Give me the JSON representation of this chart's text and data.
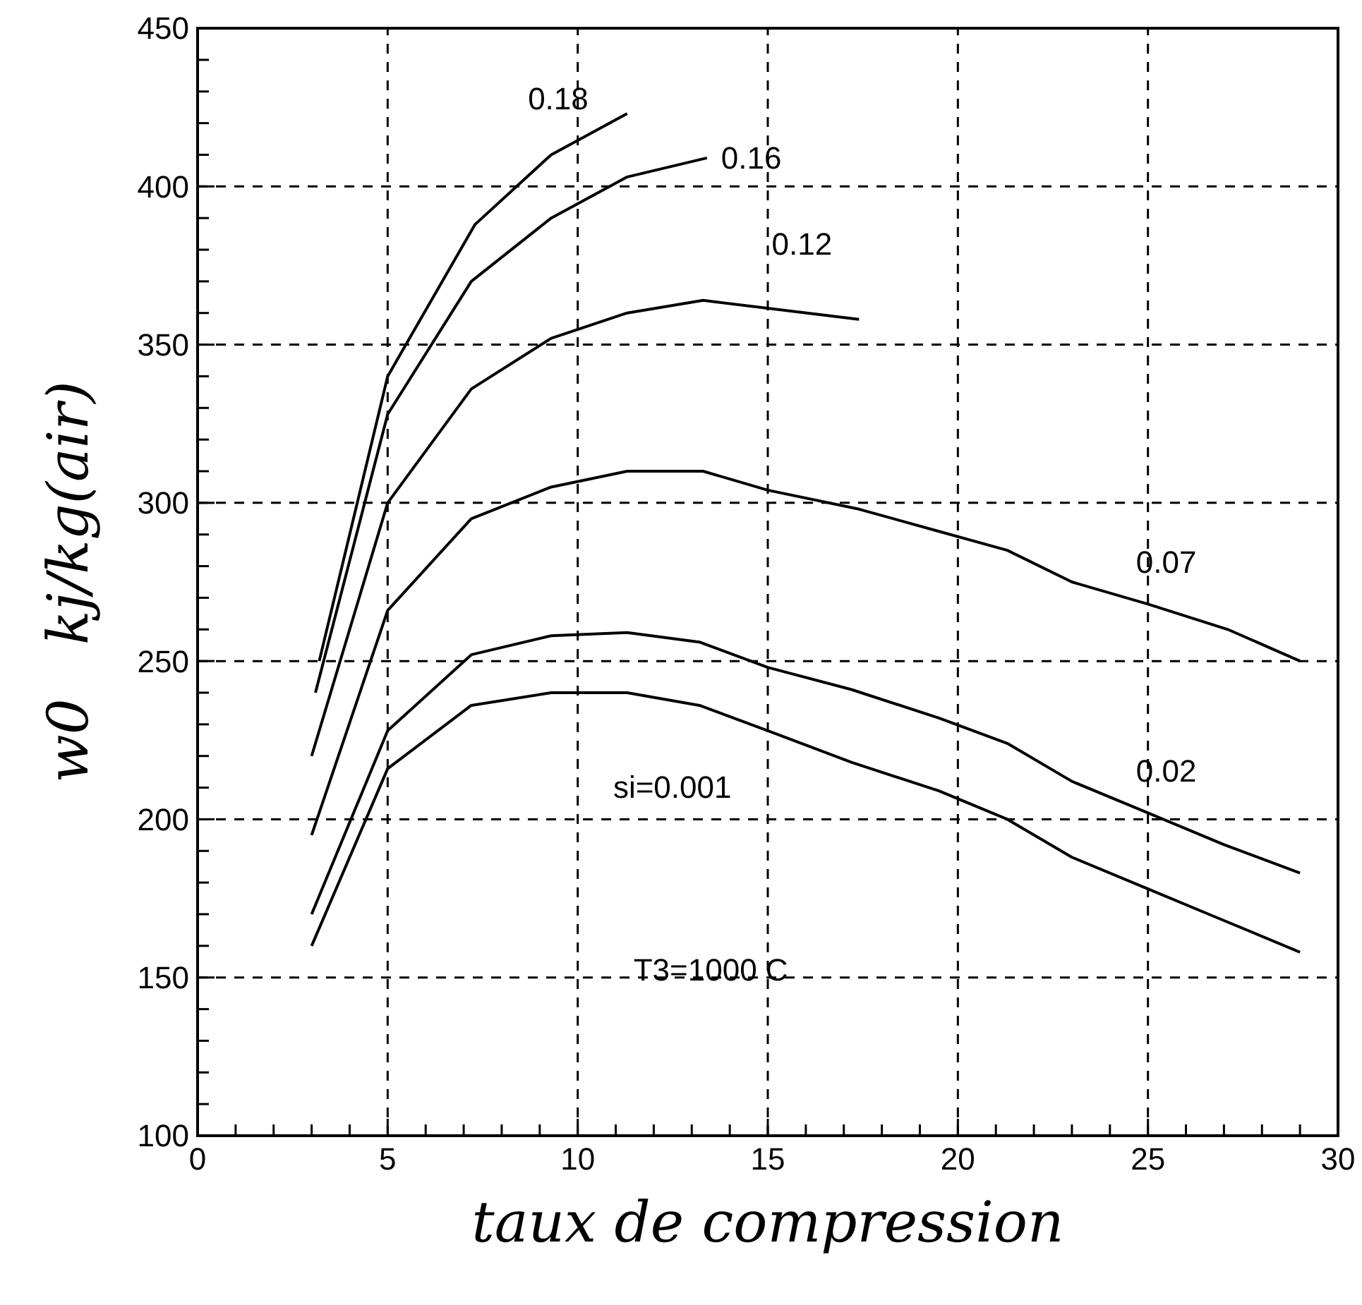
{
  "chart_data": {
    "type": "line",
    "xlabel": "taux de compression",
    "ylabel": "w0   kj/kg(air)",
    "xlim": [
      0,
      30
    ],
    "ylim": [
      100,
      450
    ],
    "xticks": [
      0,
      {
        "value": 1,
        "label": null
      },
      {
        "value": 2,
        "label": null
      },
      {
        "value": 3,
        "label": null
      },
      {
        "value": 4,
        "label": null
      },
      5,
      {
        "value": 6,
        "label": null
      },
      {
        "value": 7,
        "label": null
      },
      {
        "value": 8,
        "label": null
      },
      {
        "value": 9,
        "label": null
      },
      10,
      {
        "value": 11,
        "label": null
      },
      {
        "value": 12,
        "label": null
      },
      {
        "value": 13,
        "label": null
      },
      {
        "value": 14,
        "label": null
      },
      15,
      {
        "value": 16,
        "label": null
      },
      {
        "value": 17,
        "label": null
      },
      {
        "value": 18,
        "label": null
      },
      {
        "value": 19,
        "label": null
      },
      20,
      {
        "value": 21,
        "label": null
      },
      {
        "value": 22,
        "label": null
      },
      {
        "value": 23,
        "label": null
      },
      {
        "value": 24,
        "label": null
      },
      25,
      {
        "value": 26,
        "label": null
      },
      {
        "value": 27,
        "label": null
      },
      {
        "value": 28,
        "label": null
      },
      {
        "value": 29,
        "label": null
      },
      30
    ],
    "yticks": [
      100,
      {
        "value": 110,
        "label": null
      },
      {
        "value": 120,
        "label": null
      },
      {
        "value": 130,
        "label": null
      },
      {
        "value": 140,
        "label": null
      },
      150,
      {
        "value": 160,
        "label": null
      },
      {
        "value": 170,
        "label": null
      },
      {
        "value": 180,
        "label": null
      },
      {
        "value": 190,
        "label": null
      },
      200,
      {
        "value": 210,
        "label": null
      },
      {
        "value": 220,
        "label": null
      },
      {
        "value": 230,
        "label": null
      },
      {
        "value": 240,
        "label": null
      },
      250,
      {
        "value": 260,
        "label": null
      },
      {
        "value": 270,
        "label": null
      },
      {
        "value": 280,
        "label": null
      },
      {
        "value": 290,
        "label": null
      },
      300,
      {
        "value": 310,
        "label": null
      },
      {
        "value": 320,
        "label": null
      },
      {
        "value": 330,
        "label": null
      },
      {
        "value": 340,
        "label": null
      },
      350,
      {
        "value": 360,
        "label": null
      },
      {
        "value": 370,
        "label": null
      },
      {
        "value": 380,
        "label": null
      },
      {
        "value": 390,
        "label": null
      },
      400,
      {
        "value": 410,
        "label": null
      },
      {
        "value": 420,
        "label": null
      },
      {
        "value": 430,
        "label": null
      },
      {
        "value": 440,
        "label": null
      },
      450
    ],
    "grid": true,
    "marker": "none",
    "line_style": "solid",
    "series": [
      {
        "name": "0.18",
        "color": "#000000",
        "x": [
          3.2,
          5,
          7.3,
          9.3,
          11.3
        ],
        "values": [
          250,
          340,
          388,
          410,
          423
        ]
      },
      {
        "name": "0.16",
        "color": "#000000",
        "x": [
          3.1,
          5,
          7.2,
          9.3,
          11.3,
          13.4
        ],
        "values": [
          240,
          328,
          370,
          390,
          403,
          409
        ]
      },
      {
        "name": "0.12",
        "color": "#000000",
        "x": [
          3,
          5,
          7.2,
          9.3,
          11.3,
          13.3,
          17.4
        ],
        "values": [
          220,
          300,
          336,
          352,
          360,
          364,
          358
        ]
      },
      {
        "name": "0.07",
        "color": "#000000",
        "x": [
          3,
          5,
          7.2,
          9.3,
          11.3,
          13.3,
          15,
          17.4,
          19.5,
          21.3,
          23,
          25,
          27.1,
          29
        ],
        "values": [
          195,
          266,
          295,
          305,
          310,
          310,
          304,
          298,
          291,
          285,
          275,
          268,
          260,
          250
        ]
      },
      {
        "name": "0.02",
        "color": "#000000",
        "x": [
          3,
          5,
          7.2,
          9.3,
          11.3,
          13.2,
          15,
          17.2,
          19.5,
          21.3,
          23,
          25,
          27,
          29
        ],
        "values": [
          170,
          228,
          252,
          258,
          259,
          256,
          248,
          241,
          232,
          224,
          212,
          202,
          192,
          183
        ]
      },
      {
        "name": "si=0.001",
        "color": "#000000",
        "x": [
          3,
          5,
          7.2,
          9.3,
          11.3,
          13.2,
          15,
          17.2,
          19.5,
          21.3,
          23,
          25,
          27,
          29
        ],
        "values": [
          160,
          216,
          236,
          240,
          240,
          236,
          228,
          218,
          209,
          200,
          188,
          178,
          168,
          158
        ]
      }
    ],
    "annotations": [
      "T3=1000  C"
    ]
  }
}
